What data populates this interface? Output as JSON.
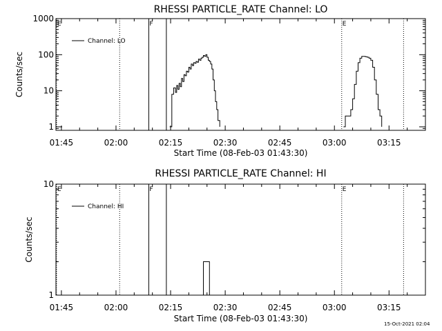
{
  "chart_data": [
    {
      "type": "line",
      "title": "RHESSI PARTICLE_RATE Channel: LO",
      "xlabel": "Start Time (08-Feb-03 01:43:30)",
      "ylabel": "Counts/sec",
      "xlim": [
        "01:43:30",
        "03:25:00"
      ],
      "ylim": [
        0.8,
        1000
      ],
      "y_scale": "log",
      "x_ticks": [
        "01:45",
        "02:00",
        "02:15",
        "02:30",
        "02:45",
        "03:00",
        "03:15"
      ],
      "y_ticks": [
        "1",
        "10",
        "100",
        "1000"
      ],
      "legend": {
        "location": "top-left",
        "entries": [
          "Channel: LO"
        ]
      },
      "markers": [
        {
          "label": "E",
          "x": "01:43:40",
          "style": "dotted"
        },
        {
          "label": "",
          "x": "02:01:00",
          "style": "dotted"
        },
        {
          "label": "F",
          "x": "02:09:00",
          "style": "solid"
        },
        {
          "label": "",
          "x": "02:13:50",
          "style": "solid"
        },
        {
          "label": "E",
          "x": "03:02:00",
          "style": "dotted"
        },
        {
          "label": "",
          "x": "03:19:00",
          "style": "dotted"
        }
      ],
      "series": [
        {
          "name": "Channel: LO",
          "x": [
            "02:14:45",
            "02:15:20",
            "02:15:50",
            "02:16:20",
            "02:16:40",
            "02:17:00",
            "02:17:20",
            "02:17:40",
            "02:18:00",
            "02:18:20",
            "02:18:40",
            "02:19:00",
            "02:19:20",
            "02:19:40",
            "02:20:00",
            "02:20:20",
            "02:20:40",
            "02:21:00",
            "02:21:20",
            "02:21:40",
            "02:22:00",
            "02:22:20",
            "02:22:40",
            "02:23:00",
            "02:23:20",
            "02:23:40",
            "02:24:00",
            "02:24:20",
            "02:24:40",
            "02:25:00",
            "02:25:20",
            "02:25:40",
            "02:26:00",
            "02:26:20",
            "02:26:40",
            "02:27:00",
            "02:27:20",
            "02:27:40",
            "02:28:00",
            "02:28:30"
          ],
          "y": [
            1,
            8,
            12,
            9,
            14,
            11,
            16,
            13,
            22,
            18,
            28,
            26,
            35,
            33,
            45,
            40,
            55,
            50,
            60,
            58,
            65,
            62,
            75,
            70,
            80,
            85,
            95,
            90,
            100,
            85,
            70,
            65,
            55,
            40,
            20,
            10,
            5,
            3,
            1.5,
            1
          ]
        },
        {
          "name": "Channel: LO",
          "x": [
            "03:02:30",
            "03:03:00",
            "03:03:40",
            "03:04:00",
            "03:04:30",
            "03:05:00",
            "03:05:30",
            "03:06:00",
            "03:06:30",
            "03:07:00",
            "03:07:30",
            "03:08:00",
            "03:08:30",
            "03:09:00",
            "03:09:30",
            "03:10:00",
            "03:10:30",
            "03:11:00",
            "03:11:30",
            "03:12:00",
            "03:12:30",
            "03:13:00"
          ],
          "y": [
            1,
            2,
            2,
            2,
            3,
            6,
            15,
            35,
            60,
            80,
            90,
            90,
            88,
            85,
            80,
            70,
            45,
            20,
            8,
            3,
            2,
            1
          ]
        }
      ]
    },
    {
      "type": "line",
      "title": "RHESSI PARTICLE_RATE Channel: HI",
      "xlabel": "Start Time (08-Feb-03 01:43:30)",
      "ylabel": "Counts/sec",
      "xlim": [
        "01:43:30",
        "03:25:00"
      ],
      "ylim": [
        1,
        10
      ],
      "y_scale": "log",
      "x_ticks": [
        "01:45",
        "02:00",
        "02:15",
        "02:30",
        "02:45",
        "03:00",
        "03:15"
      ],
      "y_ticks": [
        "1",
        "10"
      ],
      "legend": {
        "location": "top-left",
        "entries": [
          "Channel: HI"
        ]
      },
      "markers": [
        {
          "label": "E",
          "x": "01:43:40",
          "style": "dotted"
        },
        {
          "label": "",
          "x": "02:01:00",
          "style": "dotted"
        },
        {
          "label": "F",
          "x": "02:09:00",
          "style": "solid"
        },
        {
          "label": "",
          "x": "02:13:50",
          "style": "solid"
        },
        {
          "label": "E",
          "x": "03:02:00",
          "style": "dotted"
        },
        {
          "label": "",
          "x": "03:19:00",
          "style": "dotted"
        }
      ],
      "series": [
        {
          "name": "Channel: HI",
          "x": [
            "02:23:40",
            "02:24:00",
            "02:24:40",
            "02:25:20",
            "02:25:40"
          ],
          "y": [
            1,
            2,
            2,
            2,
            1
          ]
        }
      ]
    }
  ],
  "footer": {
    "timestamp": "15-Oct-2021 02:04"
  }
}
